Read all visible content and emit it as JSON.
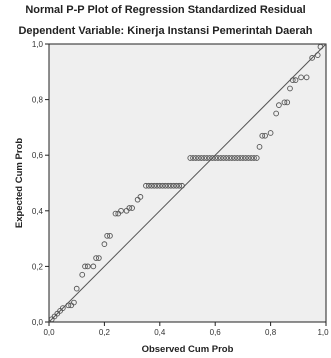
{
  "chart_data": {
    "type": "scatter",
    "title": "Normal P-P Plot of Regression Standardized Residual",
    "subtitle": "Dependent Variable: Kinerja Instansi Pemerintah Daerah",
    "xlabel": "Observed Cum Prob",
    "ylabel": "Expected Cum Prob",
    "xlim": [
      0.0,
      1.0
    ],
    "ylim": [
      0.0,
      1.0
    ],
    "xticks": [
      "0,0",
      "0,2",
      "0,4",
      "0,6",
      "0,8",
      "1,0"
    ],
    "yticks": [
      "0,0",
      "0,2",
      "0,4",
      "0,6",
      "0,8",
      "1,0"
    ],
    "tick_values": [
      0.0,
      0.2,
      0.4,
      0.6,
      0.8,
      1.0
    ],
    "grid": false,
    "reference_line": {
      "from": [
        0,
        0
      ],
      "to": [
        1,
        1
      ]
    },
    "colors": {
      "plot_background": "#efefef",
      "marker_edge": "#555555",
      "line": "#555555"
    },
    "points": [
      [
        0.01,
        0.01
      ],
      [
        0.02,
        0.02
      ],
      [
        0.03,
        0.03
      ],
      [
        0.04,
        0.04
      ],
      [
        0.05,
        0.05
      ],
      [
        0.07,
        0.06
      ],
      [
        0.08,
        0.06
      ],
      [
        0.09,
        0.07
      ],
      [
        0.1,
        0.12
      ],
      [
        0.12,
        0.17
      ],
      [
        0.13,
        0.2
      ],
      [
        0.14,
        0.2
      ],
      [
        0.16,
        0.2
      ],
      [
        0.17,
        0.23
      ],
      [
        0.18,
        0.23
      ],
      [
        0.2,
        0.28
      ],
      [
        0.21,
        0.31
      ],
      [
        0.22,
        0.31
      ],
      [
        0.24,
        0.39
      ],
      [
        0.25,
        0.39
      ],
      [
        0.26,
        0.4
      ],
      [
        0.28,
        0.4
      ],
      [
        0.29,
        0.41
      ],
      [
        0.3,
        0.41
      ],
      [
        0.32,
        0.44
      ],
      [
        0.33,
        0.45
      ],
      [
        0.35,
        0.49
      ],
      [
        0.36,
        0.49
      ],
      [
        0.37,
        0.49
      ],
      [
        0.38,
        0.49
      ],
      [
        0.39,
        0.49
      ],
      [
        0.4,
        0.49
      ],
      [
        0.41,
        0.49
      ],
      [
        0.42,
        0.49
      ],
      [
        0.43,
        0.49
      ],
      [
        0.44,
        0.49
      ],
      [
        0.45,
        0.49
      ],
      [
        0.46,
        0.49
      ],
      [
        0.47,
        0.49
      ],
      [
        0.48,
        0.49
      ],
      [
        0.51,
        0.59
      ],
      [
        0.52,
        0.59
      ],
      [
        0.53,
        0.59
      ],
      [
        0.54,
        0.59
      ],
      [
        0.55,
        0.59
      ],
      [
        0.56,
        0.59
      ],
      [
        0.57,
        0.59
      ],
      [
        0.58,
        0.59
      ],
      [
        0.59,
        0.59
      ],
      [
        0.6,
        0.59
      ],
      [
        0.61,
        0.59
      ],
      [
        0.62,
        0.59
      ],
      [
        0.63,
        0.59
      ],
      [
        0.64,
        0.59
      ],
      [
        0.65,
        0.59
      ],
      [
        0.66,
        0.59
      ],
      [
        0.67,
        0.59
      ],
      [
        0.68,
        0.59
      ],
      [
        0.69,
        0.59
      ],
      [
        0.7,
        0.59
      ],
      [
        0.71,
        0.59
      ],
      [
        0.72,
        0.59
      ],
      [
        0.73,
        0.59
      ],
      [
        0.74,
        0.59
      ],
      [
        0.75,
        0.59
      ],
      [
        0.76,
        0.63
      ],
      [
        0.77,
        0.67
      ],
      [
        0.78,
        0.67
      ],
      [
        0.8,
        0.68
      ],
      [
        0.82,
        0.75
      ],
      [
        0.83,
        0.78
      ],
      [
        0.85,
        0.79
      ],
      [
        0.86,
        0.79
      ],
      [
        0.87,
        0.84
      ],
      [
        0.88,
        0.87
      ],
      [
        0.89,
        0.87
      ],
      [
        0.91,
        0.88
      ],
      [
        0.93,
        0.88
      ],
      [
        0.95,
        0.95
      ],
      [
        0.97,
        0.96
      ],
      [
        0.98,
        0.99
      ]
    ]
  }
}
